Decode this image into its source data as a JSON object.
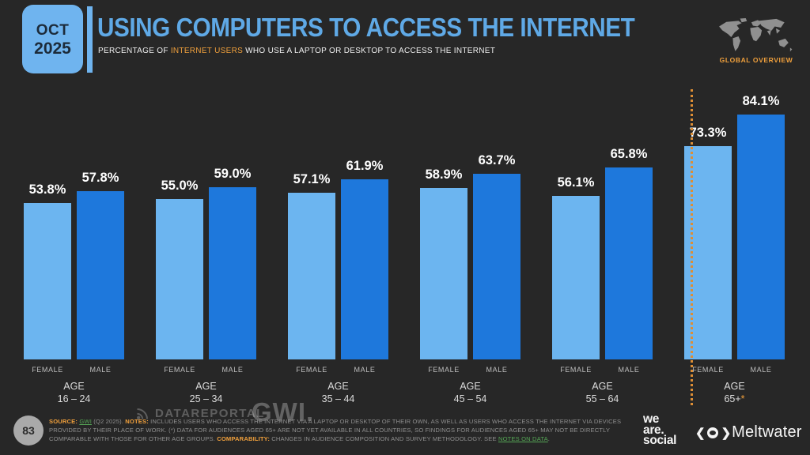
{
  "slide": {
    "date_badge": {
      "month": "OCT",
      "year": "2025"
    },
    "title": "USING COMPUTERS TO ACCESS THE INTERNET",
    "subtitle": {
      "prefix": "PERCENTAGE OF ",
      "highlight": "INTERNET USERS",
      "suffix": " WHO USE A LAPTOP OR DESKTOP TO ACCESS THE INTERNET"
    },
    "region_label": "GLOBAL OVERVIEW",
    "page_number": "83"
  },
  "chart_data": {
    "type": "bar",
    "title": "USING COMPUTERS TO ACCESS THE INTERNET",
    "subtitle": "PERCENTAGE OF INTERNET USERS WHO USE A LAPTOP OR DESKTOP TO ACCESS THE INTERNET",
    "category_prefix": "AGE",
    "categories": [
      "16 – 24",
      "25 – 34",
      "35 – 44",
      "45 – 54",
      "55 – 64",
      "65+*"
    ],
    "series": [
      {
        "name": "FEMALE",
        "color": "#6CB5F0",
        "values": [
          53.8,
          55.0,
          57.1,
          58.9,
          56.1,
          73.3
        ]
      },
      {
        "name": "MALE",
        "color": "#1E78DC",
        "values": [
          57.8,
          59.0,
          61.9,
          63.7,
          65.8,
          84.1
        ]
      }
    ],
    "value_suffix": "%",
    "ylim": [
      0,
      100
    ],
    "grid": false,
    "legend_position": "below-each-bar",
    "separator_before_category": "65+*",
    "separator_style": "dotted-orange-vertical"
  },
  "watermarks": {
    "datareportal": "DATAREPORTAL",
    "gwi": "GWI."
  },
  "footer": {
    "segments": [
      {
        "text": "SOURCE: ",
        "style": "label"
      },
      {
        "text": "GWI",
        "style": "link"
      },
      {
        "text": " (Q2 2025). ",
        "style": "body"
      },
      {
        "text": "NOTES: ",
        "style": "label"
      },
      {
        "text": "INCLUDES USERS WHO ACCESS THE INTERNET VIA A LAPTOP OR DESKTOP OF THEIR OWN, AS WELL AS USERS WHO ACCESS THE INTERNET VIA DEVICES PROVIDED BY THEIR PLACE OF WORK. (*) DATA FOR AUDIENCES AGED 65+ ARE NOT YET AVAILABLE IN ALL COUNTRIES, SO FINDINGS FOR AUDIENCES AGED 65+ MAY NOT BE DIRECTLY COMPARABLE WITH THOSE FOR OTHER AGE GROUPS. ",
        "style": "body"
      },
      {
        "text": "COMPARABILITY: ",
        "style": "label"
      },
      {
        "text": "CHANGES IN AUDIENCE COMPOSITION AND SURVEY METHODOLOGY. SEE ",
        "style": "body"
      },
      {
        "text": "NOTES ON DATA",
        "style": "link"
      },
      {
        "text": ".",
        "style": "body"
      }
    ]
  },
  "logos": {
    "we_are_social": {
      "line1": "we",
      "line2": "are.",
      "line3": "social"
    },
    "meltwater": "Meltwater"
  },
  "colors": {
    "background": "#272727",
    "title_blue": "#5FA9E6",
    "female_bar": "#6CB5F0",
    "male_bar": "#1E78DC",
    "accent_orange": "#F0A03C",
    "link_green": "#55A555",
    "separator_orange": "#DD8E35"
  }
}
